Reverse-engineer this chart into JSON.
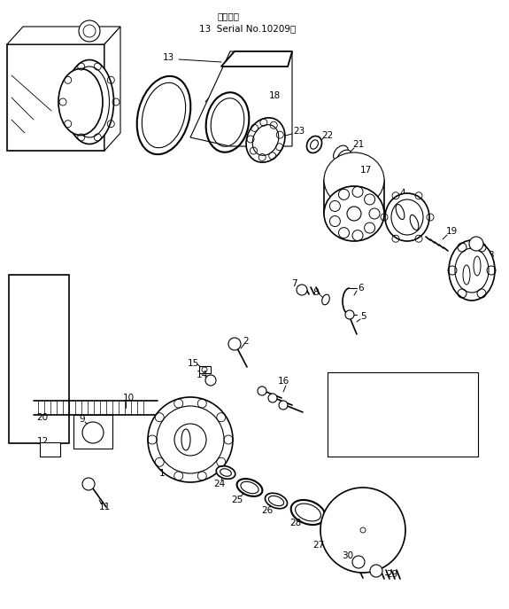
{
  "background_color": "#ffffff",
  "line_color": "#000000",
  "fig_width": 5.75,
  "fig_height": 6.87,
  "dpi": 100,
  "annotation_line1": "適用号表",
  "annotation_line2": "13  Serial No.10209～"
}
